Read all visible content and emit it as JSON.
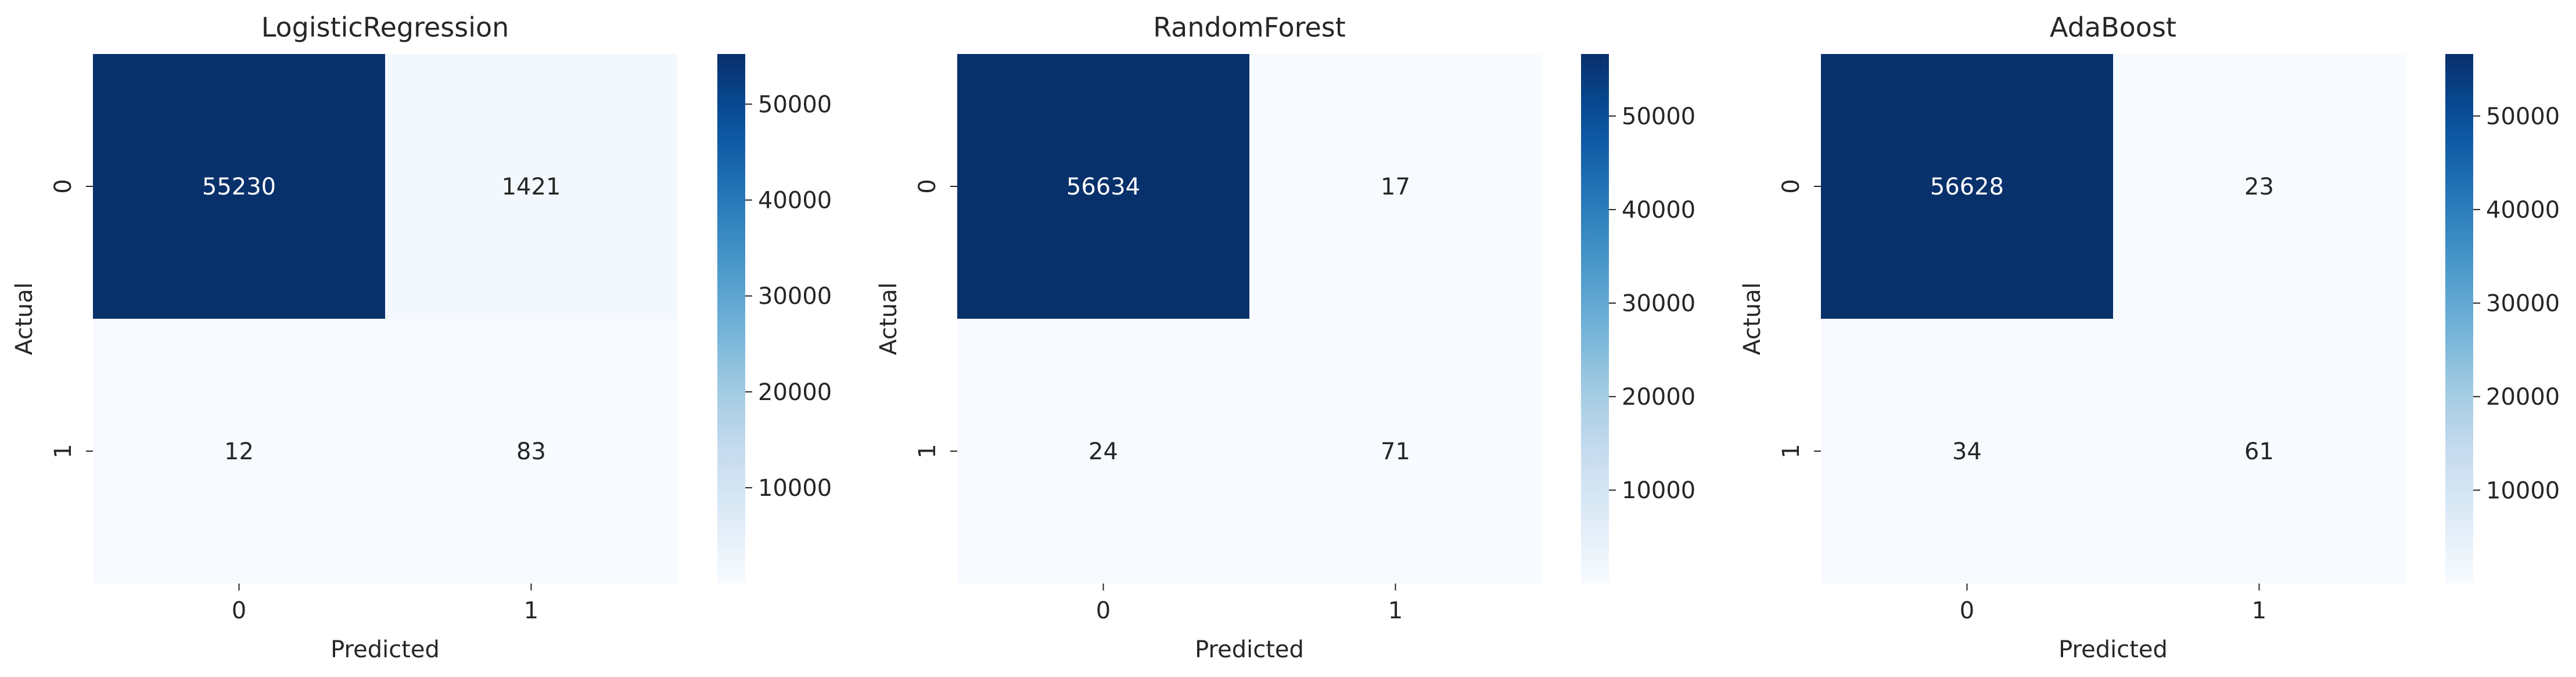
{
  "chart_data": [
    {
      "type": "heatmap",
      "title": "LogisticRegression",
      "xlabel": "Predicted",
      "ylabel": "Actual",
      "x_categories": [
        "0",
        "1"
      ],
      "y_categories": [
        "0",
        "1"
      ],
      "values": [
        [
          55230,
          1421
        ],
        [
          12,
          83
        ]
      ],
      "colormap": "Blues",
      "colorbar_ticks": [
        10000,
        20000,
        30000,
        40000,
        50000
      ]
    },
    {
      "type": "heatmap",
      "title": "RandomForest",
      "xlabel": "Predicted",
      "ylabel": "Actual",
      "x_categories": [
        "0",
        "1"
      ],
      "y_categories": [
        "0",
        "1"
      ],
      "values": [
        [
          56634,
          17
        ],
        [
          24,
          71
        ]
      ],
      "colormap": "Blues",
      "colorbar_ticks": [
        10000,
        20000,
        30000,
        40000,
        50000
      ]
    },
    {
      "type": "heatmap",
      "title": "AdaBoost",
      "xlabel": "Predicted",
      "ylabel": "Actual",
      "x_categories": [
        "0",
        "1"
      ],
      "y_categories": [
        "0",
        "1"
      ],
      "values": [
        [
          56628,
          23
        ],
        [
          34,
          61
        ]
      ],
      "colormap": "Blues",
      "colorbar_ticks": [
        10000,
        20000,
        30000,
        40000,
        50000
      ]
    }
  ]
}
